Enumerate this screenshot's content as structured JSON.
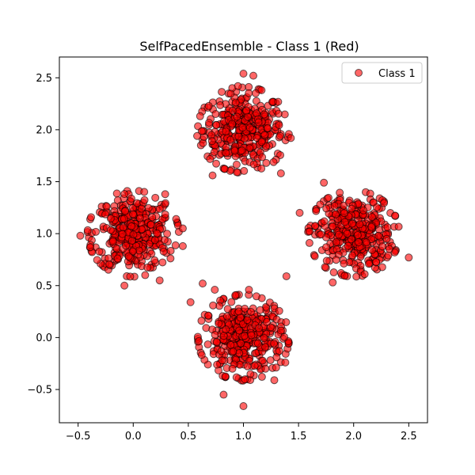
{
  "chart_data": {
    "type": "scatter",
    "title": "SelfPacedEnsemble - Class 1 (Red)",
    "xlabel": "",
    "ylabel": "",
    "xlim": [
      -0.67,
      2.67
    ],
    "ylim": [
      -0.82,
      2.7
    ],
    "xticks": [
      -0.5,
      0.0,
      0.5,
      1.0,
      1.5,
      2.0,
      2.5
    ],
    "xtick_labels": [
      "−0.5",
      "0.0",
      "0.5",
      "1.0",
      "1.5",
      "2.0",
      "2.5"
    ],
    "yticks": [
      -0.5,
      0.0,
      0.5,
      1.0,
      1.5,
      2.0,
      2.5
    ],
    "ytick_labels": [
      "−0.5",
      "0.0",
      "0.5",
      "1.0",
      "1.5",
      "2.0",
      "2.5"
    ],
    "grid": false,
    "legend_position": "upper right",
    "series": [
      {
        "name": "Class 1",
        "color": "#ff0000",
        "edge_color": "#000000",
        "alpha": 0.6,
        "clusters": [
          {
            "center": [
              1.0,
              2.0
            ],
            "spread": 0.18,
            "count": 360
          },
          {
            "center": [
              0.0,
              1.0
            ],
            "spread": 0.18,
            "count": 360
          },
          {
            "center": [
              2.0,
              1.0
            ],
            "spread": 0.18,
            "count": 360
          },
          {
            "center": [
              1.0,
              0.0
            ],
            "spread": 0.18,
            "count": 360
          }
        ],
        "outliers": [
          [
            1.0,
            2.54
          ],
          [
            0.95,
            2.42
          ],
          [
            1.09,
            2.52
          ],
          [
            0.72,
            1.56
          ],
          [
            1.34,
            1.58
          ],
          [
            1.43,
            1.92
          ],
          [
            0.58,
            1.94
          ],
          [
            -0.48,
            0.98
          ],
          [
            -0.39,
            0.87
          ],
          [
            0.45,
            1.05
          ],
          [
            0.45,
            0.88
          ],
          [
            0.29,
            1.38
          ],
          [
            -0.08,
            0.5
          ],
          [
            0.24,
            0.55
          ],
          [
            1.73,
            1.49
          ],
          [
            1.51,
            1.2
          ],
          [
            1.81,
            0.53
          ],
          [
            2.5,
            0.77
          ],
          [
            2.3,
            0.95
          ],
          [
            2.1,
            0.61
          ],
          [
            1.6,
            1.02
          ],
          [
            0.63,
            0.52
          ],
          [
            0.52,
            0.34
          ],
          [
            0.74,
            0.46
          ],
          [
            1.39,
            0.59
          ],
          [
            1.05,
            0.46
          ],
          [
            0.82,
            -0.55
          ],
          [
            1.0,
            -0.66
          ],
          [
            1.38,
            -0.24
          ],
          [
            1.28,
            -0.41
          ],
          [
            0.9,
            -0.3
          ],
          [
            1.2,
            -0.3
          ]
        ]
      }
    ]
  }
}
